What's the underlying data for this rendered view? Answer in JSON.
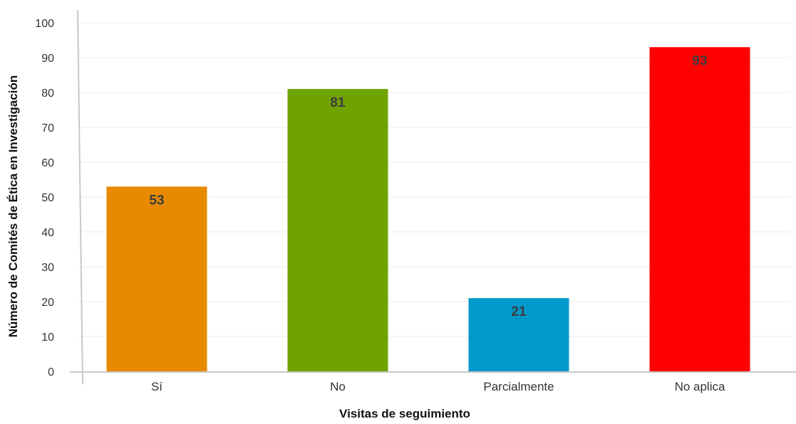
{
  "chart_data": {
    "type": "bar",
    "categories": [
      "Sí",
      "No",
      "Parcialmente",
      "No aplica"
    ],
    "values": [
      53,
      81,
      21,
      93
    ],
    "colors": [
      "#E88A00",
      "#6FA300",
      "#0099CC",
      "#FF0000"
    ],
    "xlabel": "Visitas de seguimiento",
    "ylabel": "Número de Comités de Ética en Investigación",
    "ylim": [
      0,
      100
    ],
    "yticks": [
      0,
      10,
      20,
      30,
      40,
      50,
      60,
      70,
      80,
      90,
      100
    ],
    "grid": true,
    "legend": "none"
  }
}
